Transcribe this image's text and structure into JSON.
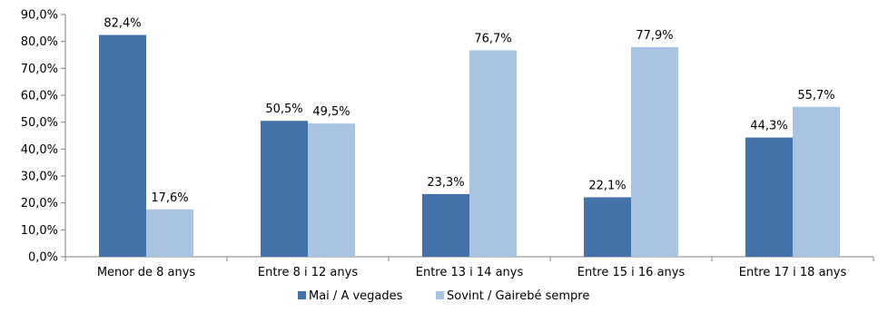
{
  "chart_data": {
    "type": "bar",
    "categories": [
      "Menor de 8 anys",
      "Entre 8 i 12 anys",
      "Entre 13 i 14 anys",
      "Entre 15 i 16 anys",
      "Entre 17 i 18 anys"
    ],
    "series": [
      {
        "name": "Mai / A vegades",
        "color": "#4472A8",
        "values": [
          82.4,
          50.5,
          23.3,
          22.1,
          44.3
        ],
        "labels": [
          "82,4%",
          "50,5%",
          "23,3%",
          "22,1%",
          "44,3%"
        ]
      },
      {
        "name": "Sovint / Gairebé sempre",
        "color": "#A9C4E0",
        "values": [
          17.6,
          49.5,
          76.7,
          77.9,
          55.7
        ],
        "labels": [
          "17,6%",
          "49,5%",
          "76,7%",
          "77,9%",
          "55,7%"
        ]
      }
    ],
    "y_ticks": [
      0,
      10,
      20,
      30,
      40,
      50,
      60,
      70,
      80,
      90
    ],
    "y_tick_labels": [
      "0,0%",
      "10,0%",
      "20,0%",
      "30,0%",
      "40,0%",
      "50,0%",
      "60,0%",
      "70,0%",
      "80,0%",
      "90,0%"
    ],
    "ylim": [
      0,
      90
    ],
    "grid": false,
    "legend_position": "bottom-center"
  }
}
